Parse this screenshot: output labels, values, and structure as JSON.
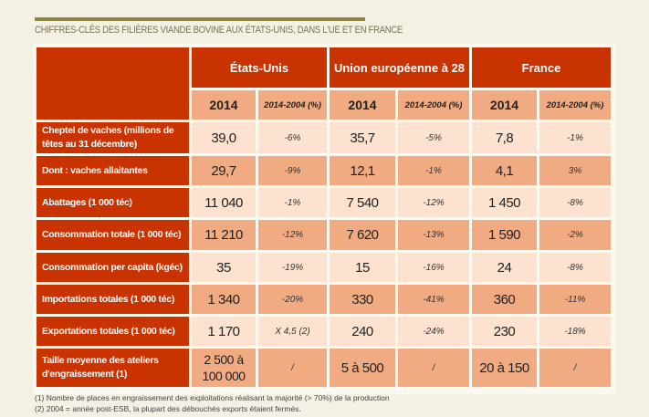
{
  "title": "CHIFFRES-CLÉS DES FILIÈRES VIANDE BOVINE AUX ÉTATS-UNIS, DANS L'UE ET EN FRANCE",
  "columns": {
    "groups": [
      "États-Unis",
      "Union européenne à 28",
      "France"
    ],
    "sub": [
      "2014",
      "2014-2004 (%)"
    ]
  },
  "rows": [
    {
      "label": "Cheptel de vaches (millions de têtes au 31 décembre)",
      "values": [
        "39,0",
        "-6%",
        "35,7",
        "-5%",
        "7,8",
        "-1%"
      ]
    },
    {
      "label": "Dont : vaches allaitantes",
      "values": [
        "29,7",
        "-9%",
        "12,1",
        "-1%",
        "4,1",
        "3%"
      ]
    },
    {
      "label": "Abattages (1 000 téc)",
      "values": [
        "11 040",
        "-1%",
        "7 540",
        "-12%",
        "1 450",
        "-8%"
      ]
    },
    {
      "label": "Consommation totale (1 000 téc)",
      "values": [
        "11 210",
        "-12%",
        "7 620",
        "-13%",
        "1 590",
        "-2%"
      ]
    },
    {
      "label": "Consommation per capita (kgéc)",
      "values": [
        "35",
        "-19%",
        "15",
        "-16%",
        "24",
        "-8%"
      ]
    },
    {
      "label": "Importations totales (1 000 téc)",
      "values": [
        "1 340",
        "-20%",
        "330",
        "-41%",
        "360",
        "-11%"
      ]
    },
    {
      "label": "Exportations totales (1 000 téc)",
      "values": [
        "1 170",
        "X 4,5 (2)",
        "240",
        "-24%",
        "230",
        "-18%"
      ]
    },
    {
      "label": "Taille moyenne des ateliers d'engraissement (1)",
      "values": [
        "2 500 à 100 000",
        "/",
        "5 à 500",
        "/",
        "20 à 150",
        "/"
      ]
    }
  ],
  "footnotes": [
    "(1) Nombre de places en engraissement des exploitations réalisant la majorité (> 70%) de la production",
    "(2) 2004 = année post-ESB, la plupart des débouchés exports étaient fermés."
  ],
  "colors": {
    "header": "#c93300",
    "row_dark": "#f1ab82",
    "row_light": "#fce2cf",
    "rule": "#8e8446"
  }
}
